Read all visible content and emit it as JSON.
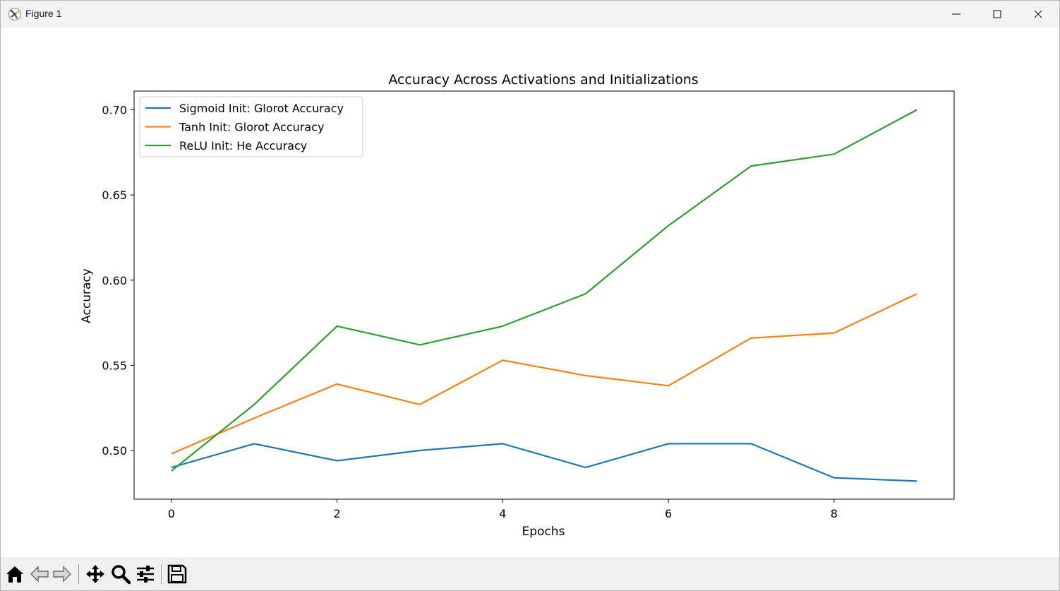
{
  "window": {
    "title": "Figure 1"
  },
  "chart_data": {
    "type": "line",
    "title": "Accuracy Across Activations and Initializations",
    "xlabel": "Epochs",
    "ylabel": "Accuracy",
    "xlim": [
      -0.45,
      9.45
    ],
    "ylim": [
      0.4714,
      0.711
    ],
    "xticks": [
      0,
      2,
      4,
      6,
      8
    ],
    "xtick_labels": [
      "0",
      "2",
      "4",
      "6",
      "8"
    ],
    "yticks": [
      0.5,
      0.55,
      0.6,
      0.65,
      0.7
    ],
    "ytick_labels": [
      "0.50",
      "0.55",
      "0.60",
      "0.65",
      "0.70"
    ],
    "grid": false,
    "legend_position": "upper left",
    "x": [
      0,
      1,
      2,
      3,
      4,
      5,
      6,
      7,
      8,
      9
    ],
    "series": [
      {
        "name": "Sigmoid Init: Glorot Accuracy",
        "color": "#1f77b4",
        "values": [
          0.49,
          0.504,
          0.494,
          0.5,
          0.504,
          0.49,
          0.504,
          0.504,
          0.484,
          0.482
        ]
      },
      {
        "name": "Tanh Init: Glorot Accuracy",
        "color": "#ff7f0e",
        "values": [
          0.498,
          0.519,
          0.539,
          0.527,
          0.553,
          0.544,
          0.538,
          0.566,
          0.569,
          0.592
        ]
      },
      {
        "name": "ReLU Init: He Accuracy",
        "color": "#2ca02c",
        "values": [
          0.488,
          0.527,
          0.573,
          0.562,
          0.573,
          0.592,
          0.632,
          0.667,
          0.674,
          0.7
        ]
      }
    ]
  },
  "toolbar": {
    "buttons": [
      "home-icon",
      "back-icon",
      "forward-icon",
      "pan-icon",
      "zoom-icon",
      "configure-subplots-icon",
      "save-icon"
    ]
  }
}
